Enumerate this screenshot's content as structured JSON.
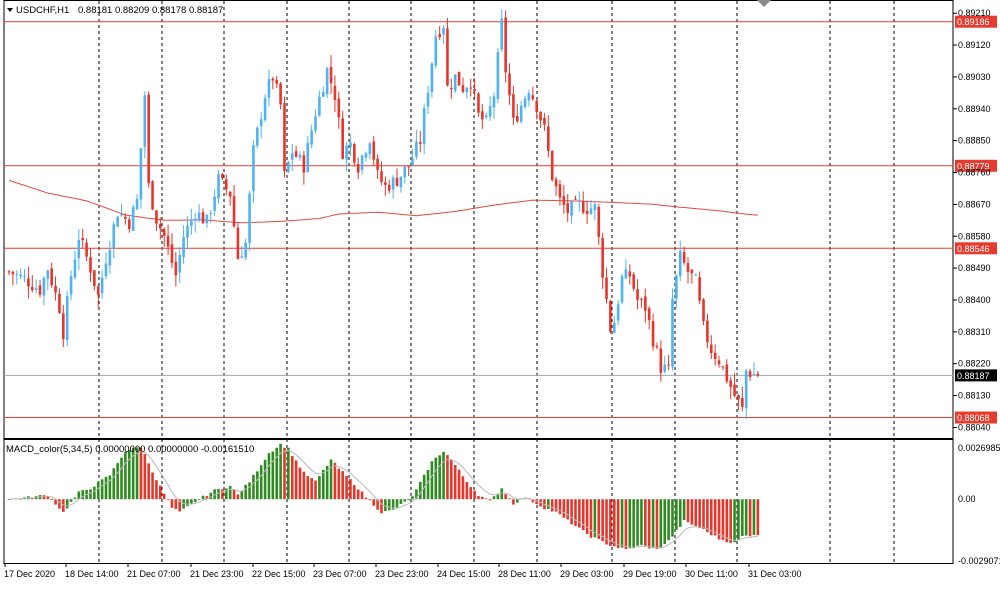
{
  "colors": {
    "bull": "#4DB3F2",
    "bear": "#E8352A",
    "level": "#E63B2E",
    "ma": "#E04B3F",
    "grid": "#000000",
    "macd_up": "#2E8B1F",
    "macd_down": "#E8352A",
    "signal": "#B8B8B8",
    "bid": "#9CA8B8"
  },
  "chart_data": [
    {
      "type": "candlestick",
      "title": "USDCHF,H1",
      "ohlc_text": "0.88181 0.88209 0.88178 0.88187",
      "ylim": [
        0.88013,
        0.89236
      ],
      "y_ticks": [
        "0.89210",
        "0.89120",
        "0.89030",
        "0.88940",
        "0.88850",
        "0.88760",
        "0.88670",
        "0.88580",
        "0.88490",
        "0.88400",
        "0.88310",
        "0.88220",
        "0.88130",
        "0.88040"
      ],
      "levels": [
        {
          "value": 0.89186,
          "label": "0.89186",
          "kind": "level"
        },
        {
          "value": 0.88779,
          "label": "0.88779",
          "kind": "level"
        },
        {
          "value": 0.88546,
          "label": "0.88546",
          "kind": "level"
        },
        {
          "value": 0.88068,
          "label": "0.88068",
          "kind": "level"
        },
        {
          "value": 0.88187,
          "label": "0.88187",
          "kind": "bid"
        }
      ],
      "x_labels": [
        "17 Dec 2020",
        "18 Dec 14:00",
        "21 Dec 07:00",
        "21 Dec 23:00",
        "22 Dec 15:00",
        "23 Dec 07:00",
        "23 Dec 23:00",
        "24 Dec 15:00",
        "28 Dec 11:00",
        "29 Dec 03:00",
        "29 Dec 19:00",
        "30 Dec 11:00",
        "31 Dec 03:00"
      ],
      "grid": true,
      "anchors": [
        [
          0,
          0.8848
        ],
        [
          4,
          0.8846
        ],
        [
          8,
          0.8843
        ],
        [
          10,
          0.8849
        ],
        [
          13,
          0.8838
        ],
        [
          14,
          0.8831
        ],
        [
          16,
          0.8847
        ],
        [
          18,
          0.8858
        ],
        [
          21,
          0.8849
        ],
        [
          23,
          0.8841
        ],
        [
          25,
          0.8852
        ],
        [
          28,
          0.8865
        ],
        [
          31,
          0.8862
        ],
        [
          33,
          0.8868
        ],
        [
          35,
          0.8898
        ],
        [
          36,
          0.8872
        ],
        [
          38,
          0.8863
        ],
        [
          40,
          0.8858
        ],
        [
          43,
          0.8847
        ],
        [
          45,
          0.8858
        ],
        [
          48,
          0.8865
        ],
        [
          51,
          0.8862
        ],
        [
          54,
          0.8874
        ],
        [
          57,
          0.887
        ],
        [
          59,
          0.8852
        ],
        [
          61,
          0.8856
        ],
        [
          63,
          0.8882
        ],
        [
          66,
          0.8898
        ],
        [
          68,
          0.8903
        ],
        [
          70,
          0.8895
        ],
        [
          71,
          0.8875
        ],
        [
          73,
          0.8882
        ],
        [
          76,
          0.8878
        ],
        [
          79,
          0.8893
        ],
        [
          82,
          0.8905
        ],
        [
          84,
          0.8898
        ],
        [
          86,
          0.8882
        ],
        [
          88,
          0.8884
        ],
        [
          90,
          0.8878
        ],
        [
          93,
          0.8886
        ],
        [
          95,
          0.8875
        ],
        [
          97,
          0.8872
        ],
        [
          100,
          0.8874
        ],
        [
          103,
          0.8878
        ],
        [
          106,
          0.8885
        ],
        [
          108,
          0.89
        ],
        [
          110,
          0.8915
        ],
        [
          112,
          0.8918
        ],
        [
          113,
          0.89
        ],
        [
          115,
          0.8903
        ],
        [
          117,
          0.89
        ],
        [
          119,
          0.8902
        ],
        [
          121,
          0.8892
        ],
        [
          123,
          0.889
        ],
        [
          125,
          0.8898
        ],
        [
          127,
          0.8918
        ],
        [
          128,
          0.8905
        ],
        [
          130,
          0.889
        ],
        [
          132,
          0.8895
        ],
        [
          134,
          0.89
        ],
        [
          136,
          0.8895
        ],
        [
          138,
          0.8888
        ],
        [
          140,
          0.8875
        ],
        [
          142,
          0.8868
        ],
        [
          144,
          0.8865
        ],
        [
          147,
          0.8867
        ],
        [
          149,
          0.8866
        ],
        [
          151,
          0.8866
        ],
        [
          153,
          0.8848
        ],
        [
          155,
          0.8832
        ],
        [
          156,
          0.8834
        ],
        [
          158,
          0.8846
        ],
        [
          160,
          0.8847
        ],
        [
          162,
          0.884
        ],
        [
          164,
          0.8838
        ],
        [
          166,
          0.8829
        ],
        [
          168,
          0.8821
        ],
        [
          170,
          0.882
        ],
        [
          171,
          0.884
        ],
        [
          173,
          0.8852
        ],
        [
          175,
          0.8848
        ],
        [
          177,
          0.8845
        ],
        [
          179,
          0.8832
        ],
        [
          181,
          0.8826
        ],
        [
          183,
          0.8823
        ],
        [
          185,
          0.8818
        ],
        [
          187,
          0.8813
        ],
        [
          189,
          0.8809
        ],
        [
          190,
          0.882
        ],
        [
          192,
          0.8819
        ]
      ],
      "ma_path": [
        [
          0,
          0.88738
        ],
        [
          10,
          0.88702
        ],
        [
          20,
          0.8868
        ],
        [
          30,
          0.8864
        ],
        [
          40,
          0.88625
        ],
        [
          50,
          0.88626
        ],
        [
          60,
          0.88618
        ],
        [
          70,
          0.88622
        ],
        [
          80,
          0.8863
        ],
        [
          85,
          0.88643
        ],
        [
          95,
          0.88648
        ],
        [
          105,
          0.88638
        ],
        [
          115,
          0.8865
        ],
        [
          125,
          0.88668
        ],
        [
          135,
          0.88682
        ],
        [
          145,
          0.8868
        ],
        [
          155,
          0.88676
        ],
        [
          165,
          0.88671
        ],
        [
          175,
          0.8866
        ],
        [
          183,
          0.88652
        ],
        [
          192,
          0.8864
        ]
      ]
    },
    {
      "type": "bar",
      "title": "MACD_color(5,34,5) 0.00000000 0.00000000 -0.00161510",
      "ylim": [
        -0.0029071,
        0.0026985
      ],
      "y_ticks": [
        "0.0026985",
        "0.00",
        "-0.0029071"
      ],
      "anchors": [
        [
          0,
          0.0
        ],
        [
          6,
          0.0001
        ],
        [
          10,
          0.0002
        ],
        [
          14,
          -0.0006
        ],
        [
          18,
          0.0003
        ],
        [
          21,
          0.0005
        ],
        [
          26,
          0.0011
        ],
        [
          30,
          0.0022
        ],
        [
          34,
          0.0024
        ],
        [
          38,
          0.0009
        ],
        [
          42,
          -0.0004
        ],
        [
          44,
          -0.0006
        ],
        [
          48,
          -0.0001
        ],
        [
          53,
          0.0004
        ],
        [
          57,
          0.0006
        ],
        [
          59,
          0.0002
        ],
        [
          62,
          0.0008
        ],
        [
          67,
          0.0021
        ],
        [
          70,
          0.0025
        ],
        [
          72,
          0.0023
        ],
        [
          76,
          0.0012
        ],
        [
          79,
          0.0008
        ],
        [
          83,
          0.0018
        ],
        [
          85,
          0.0014
        ],
        [
          89,
          0.0007
        ],
        [
          92,
          0.0001
        ],
        [
          96,
          -0.0006
        ],
        [
          99,
          -0.0005
        ],
        [
          104,
          0.0001
        ],
        [
          109,
          0.0017
        ],
        [
          112,
          0.0022
        ],
        [
          114,
          0.0018
        ],
        [
          118,
          0.0008
        ],
        [
          121,
          0.0002
        ],
        [
          124,
          -0.0001
        ],
        [
          127,
          0.0005
        ],
        [
          130,
          -0.0002
        ],
        [
          133,
          0.0001
        ],
        [
          135,
          -0.0001
        ],
        [
          138,
          -0.0004
        ],
        [
          141,
          -0.0006
        ],
        [
          145,
          -0.0011
        ],
        [
          150,
          -0.0017
        ],
        [
          155,
          -0.0021
        ],
        [
          159,
          -0.0023
        ],
        [
          163,
          -0.0021
        ],
        [
          167,
          -0.0023
        ],
        [
          170,
          -0.0019
        ],
        [
          174,
          -0.001
        ],
        [
          178,
          -0.0013
        ],
        [
          183,
          -0.0018
        ],
        [
          187,
          -0.002
        ],
        [
          189,
          -0.0017
        ],
        [
          192,
          -0.0016
        ]
      ]
    }
  ]
}
